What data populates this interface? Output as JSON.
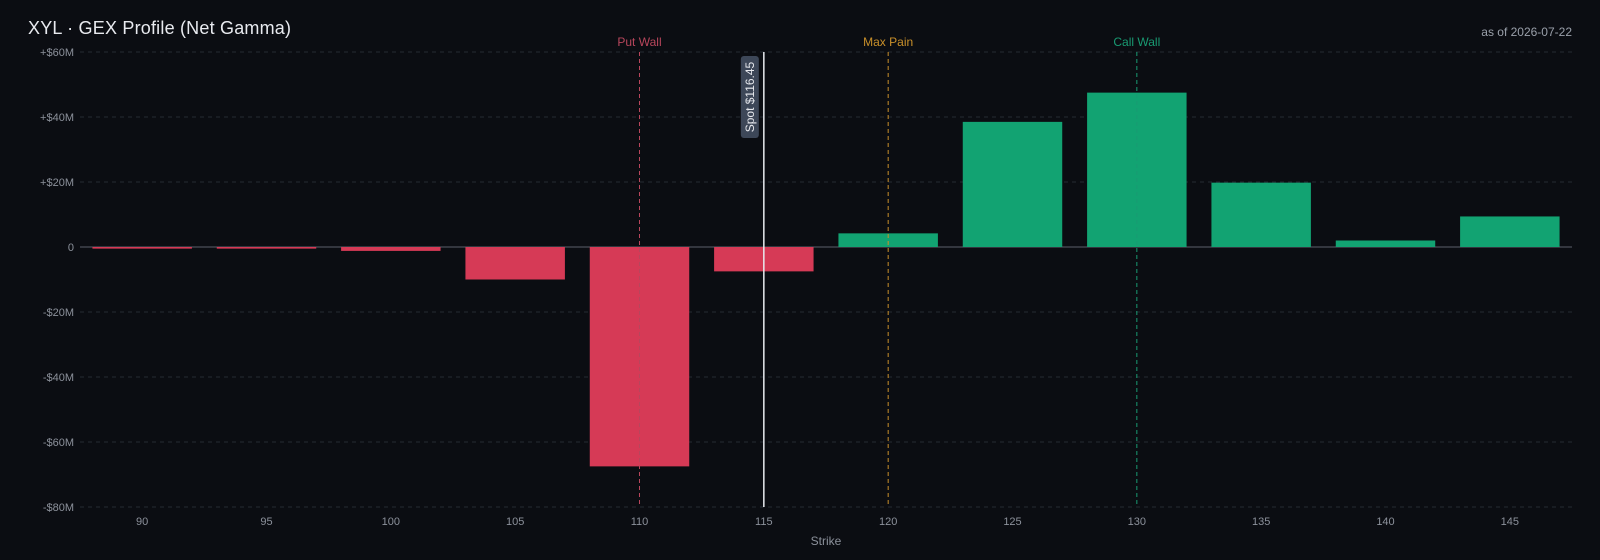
{
  "header": {
    "title": "XYL · GEX Profile (Net Gamma)",
    "as_of": "as of 2026-07-22"
  },
  "colors": {
    "positive": "#12a372",
    "negative": "#d63a56",
    "put_wall": "#b8465c",
    "max_pain": "#c9902a",
    "call_wall": "#199a72",
    "spot": "#e8eaef",
    "grid": "#262a33",
    "zero": "#5b606a"
  },
  "chart_data": {
    "type": "bar",
    "title": "XYL · GEX Profile (Net Gamma)",
    "xlabel": "Strike",
    "ylabel": "",
    "categories": [
      90,
      95,
      100,
      105,
      110,
      115,
      120,
      125,
      130,
      135,
      140,
      145
    ],
    "values": [
      -0.5,
      -0.5,
      -1.2,
      -10,
      -67.5,
      -7.5,
      4.2,
      38.5,
      47.5,
      19.8,
      2.0,
      9.4
    ],
    "value_unit": "$M",
    "ylim": [
      -80,
      60
    ],
    "yticks": [
      60,
      40,
      20,
      0,
      -20,
      -40,
      -60,
      -80
    ],
    "ytick_labels": [
      "+$60M",
      "+$40M",
      "+$20M",
      "0",
      "-$20M",
      "-$40M",
      "-$60M",
      "-$80M"
    ],
    "grid": true,
    "reference_lines": [
      {
        "label": "Put Wall",
        "strike": 110,
        "style": "dashed",
        "color_key": "put_wall"
      },
      {
        "label": "Max Pain",
        "strike": 120,
        "style": "dashed",
        "color_key": "max_pain"
      },
      {
        "label": "Call Wall",
        "strike": 130,
        "style": "dashed",
        "color_key": "call_wall"
      }
    ],
    "spot": {
      "label": "Spot $116.45",
      "strike": 115
    }
  }
}
